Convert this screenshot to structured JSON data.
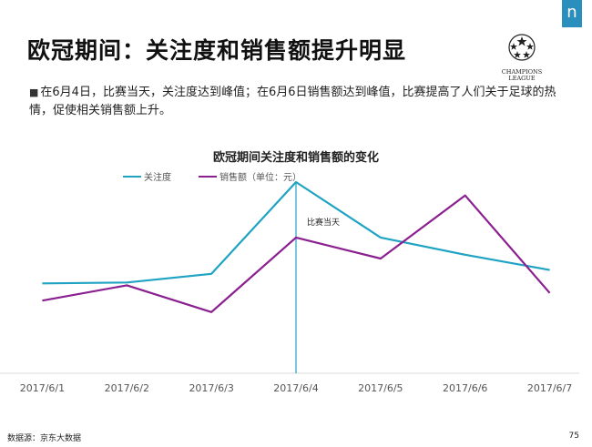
{
  "header": {
    "brand_mark": "n",
    "title": "欧冠期间：关注度和销售额提升明显",
    "logo_text_line1": "CHAMPIONS",
    "logo_text_line2": "LEAGUE"
  },
  "bullet": {
    "marker": "■",
    "text": "在6月4日，比赛当天，关注度达到峰值；在6月6日销售额达到峰值，比赛提高了人们关于足球的热情，促使相关销售额上升。"
  },
  "footer": {
    "source": "数据源：京东大数据",
    "page_number": "75"
  },
  "colors": {
    "attention": "#1fa3c2",
    "sales": "#8a1f8f",
    "marker_line": "#1fa3c2",
    "axis": "#d9d9d9"
  },
  "chart_data": {
    "type": "line",
    "title": "欧冠期间关注度和销售额的变化",
    "categories": [
      "2017/6/1",
      "2017/6/2",
      "2017/6/3",
      "2017/6/4",
      "2017/6/5",
      "2017/6/6",
      "2017/6/7"
    ],
    "series": [
      {
        "name": "关注度",
        "values": [
          47,
          47.5,
          52,
          100,
          71,
          62,
          54
        ]
      },
      {
        "name": "销售额（单位：元）",
        "values": [
          38,
          46,
          32,
          71,
          60,
          93,
          42
        ]
      }
    ],
    "ylim": [
      0,
      100
    ],
    "grid": false,
    "legend_position": "top-left",
    "annotation": {
      "category": "2017/6/4",
      "label": "比赛当天"
    }
  }
}
